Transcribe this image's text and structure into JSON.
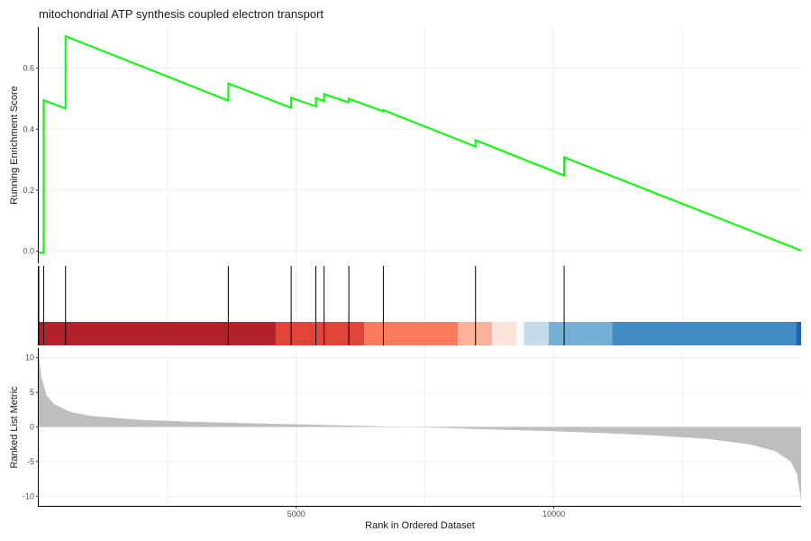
{
  "title": "mitochondrial ATP synthesis coupled electron transport",
  "colors": {
    "curve": "#00ff00",
    "metric_fill": "#bebebe",
    "axis": "#000000",
    "grid": "#ebebeb",
    "hit_line": "#000000"
  },
  "chart_data": [
    {
      "type": "line",
      "name": "running-enrichment-score",
      "ylabel": "Running Enrichment Score",
      "xlim": [
        0,
        14800
      ],
      "ylim": [
        -0.04,
        0.735
      ],
      "yticks": [
        0.0,
        0.2,
        0.4,
        0.6
      ],
      "ytick_labels": [
        "0.0",
        "0.2",
        "0.4",
        "0.6"
      ],
      "grid": true,
      "hits": [
        0,
        95,
        520,
        3680,
        4900,
        5380,
        5540,
        6020,
        6690,
        8480,
        10200
      ],
      "points": [
        [
          0,
          -0.005
        ],
        [
          95,
          -0.005
        ],
        [
          95,
          0.495
        ],
        [
          520,
          0.468
        ],
        [
          520,
          0.705
        ],
        [
          3680,
          0.494
        ],
        [
          3680,
          0.55
        ],
        [
          4900,
          0.47
        ],
        [
          4900,
          0.503
        ],
        [
          5380,
          0.475
        ],
        [
          5380,
          0.502
        ],
        [
          5540,
          0.492
        ],
        [
          5540,
          0.515
        ],
        [
          6020,
          0.488
        ],
        [
          6020,
          0.5
        ],
        [
          6690,
          0.458
        ],
        [
          6690,
          0.463
        ],
        [
          8480,
          0.343
        ],
        [
          8480,
          0.364
        ],
        [
          10200,
          0.248
        ],
        [
          10200,
          0.308
        ],
        [
          14800,
          0.002
        ]
      ]
    },
    {
      "type": "heatmap",
      "name": "rank-position-color-bar",
      "segments": [
        {
          "from": 0,
          "to": 4600,
          "color": "#b2222b"
        },
        {
          "from": 4600,
          "to": 6320,
          "color": "#e3443a"
        },
        {
          "from": 6320,
          "to": 8140,
          "color": "#fb7b5e"
        },
        {
          "from": 8140,
          "to": 8800,
          "color": "#fcb39a"
        },
        {
          "from": 8800,
          "to": 9280,
          "color": "#fde3da"
        },
        {
          "from": 9280,
          "to": 9420,
          "color": "#f7fbff"
        },
        {
          "from": 9420,
          "to": 9900,
          "color": "#c5dceb"
        },
        {
          "from": 9900,
          "to": 11130,
          "color": "#74b0d5"
        },
        {
          "from": 11130,
          "to": 14700,
          "color": "#438dc4"
        },
        {
          "from": 14700,
          "to": 14800,
          "color": "#2166ac"
        }
      ]
    },
    {
      "type": "area",
      "name": "ranked-list-metric",
      "xlabel": "Rank in Ordered Dataset",
      "ylabel": "Ranked List Metric",
      "xlim": [
        0,
        14800
      ],
      "ylim": [
        -11.4,
        11.4
      ],
      "xticks": [
        5000,
        10000
      ],
      "xtick_labels": [
        "5000",
        "10000"
      ],
      "yticks": [
        10,
        5,
        0,
        -5,
        -10
      ],
      "ytick_labels": [
        "10",
        "5",
        "0",
        "-5",
        "-10"
      ],
      "grid": true,
      "points": [
        [
          0,
          10.6
        ],
        [
          50,
          7.2
        ],
        [
          150,
          4.6
        ],
        [
          300,
          3.3
        ],
        [
          600,
          2.2
        ],
        [
          1000,
          1.6
        ],
        [
          2000,
          1.0
        ],
        [
          3000,
          0.75
        ],
        [
          4000,
          0.55
        ],
        [
          5000,
          0.38
        ],
        [
          6000,
          0.2
        ],
        [
          7000,
          0.03
        ],
        [
          8000,
          -0.18
        ],
        [
          9000,
          -0.4
        ],
        [
          10000,
          -0.62
        ],
        [
          11000,
          -0.9
        ],
        [
          12000,
          -1.25
        ],
        [
          13000,
          -1.75
        ],
        [
          13800,
          -2.5
        ],
        [
          14300,
          -3.5
        ],
        [
          14600,
          -5.0
        ],
        [
          14720,
          -6.8
        ],
        [
          14800,
          -10.6
        ]
      ]
    }
  ]
}
